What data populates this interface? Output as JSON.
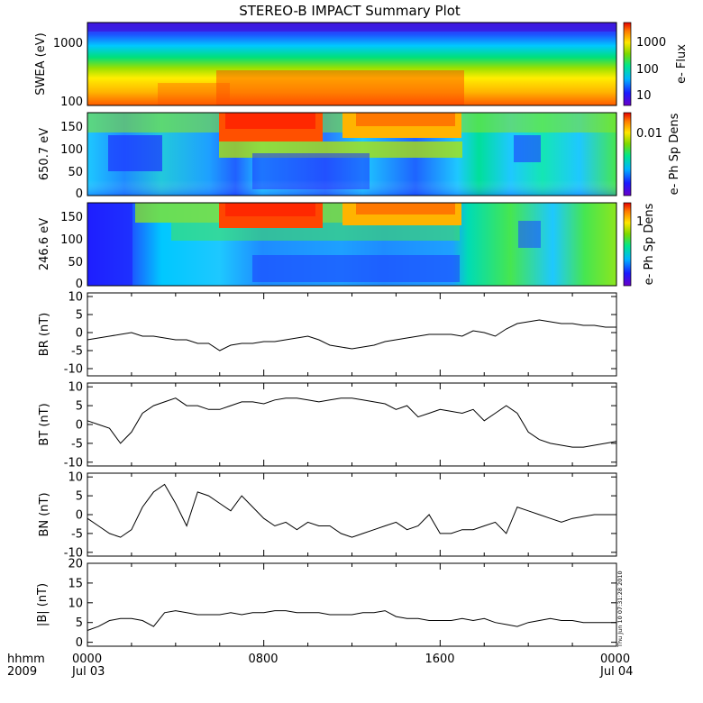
{
  "title": "STEREO-B IMPACT Summary Plot",
  "footer": {
    "left_top": "hhmm",
    "left_bottom": "2009"
  },
  "timestamp": "Thu Jun 10 07:31:28 2010",
  "colors": {
    "line": "#000000",
    "frame": "#000000",
    "background": "#ffffff"
  },
  "chart_data": [
    {
      "type": "heatmap",
      "ylabel": "SWEA (eV)",
      "y_scale": "log",
      "y_ticks": [
        "1000",
        "100"
      ],
      "colorbar": {
        "label": "e- Flux",
        "scale": "log",
        "ticks": [
          "1000",
          "100",
          "10"
        ],
        "range": [
          3,
          6000
        ]
      }
    },
    {
      "type": "heatmap",
      "ylabel": "650.7 eV",
      "ylim": [
        0,
        180
      ],
      "y_ticks": [
        "150",
        "100",
        "50",
        "0"
      ],
      "colorbar": {
        "label": "e- Ph Sp Dens",
        "scale": "log",
        "ticks": [
          "0.01"
        ]
      }
    },
    {
      "type": "heatmap",
      "ylabel": "246.6 eV",
      "ylim": [
        0,
        180
      ],
      "y_ticks": [
        "150",
        "100",
        "50",
        "0"
      ],
      "colorbar": {
        "label": "e- Ph Sp Dens",
        "scale": "log",
        "ticks": [
          "1"
        ]
      }
    },
    {
      "type": "line",
      "ylabel": "BR (nT)",
      "ylim": [
        -12,
        11
      ],
      "y_ticks": [
        "10",
        "5",
        "0",
        "-5",
        "-10"
      ],
      "x_hours": [
        0,
        0.5,
        1,
        1.5,
        2,
        2.5,
        3,
        3.5,
        4,
        4.5,
        5,
        5.5,
        6,
        6.5,
        7,
        7.5,
        8,
        8.5,
        9,
        9.5,
        10,
        10.5,
        11,
        11.5,
        12,
        12.5,
        13,
        13.5,
        14,
        14.5,
        15,
        15.5,
        16,
        16.5,
        17,
        17.5,
        18,
        18.5,
        19,
        19.5,
        20,
        20.5,
        21,
        21.5,
        22,
        22.5,
        23,
        23.5,
        24
      ],
      "series": [
        {
          "values": [
            -2,
            -1.5,
            -1,
            -0.5,
            0,
            -1,
            -1,
            -1.5,
            -2,
            -2,
            -3,
            -3,
            -5,
            -3.5,
            -3,
            -3,
            -2.5,
            -2.5,
            -2,
            -1.5,
            -1,
            -2,
            -3.5,
            -4,
            -4.5,
            -4,
            -3.5,
            -2.5,
            -2,
            -1.5,
            -1,
            -0.5,
            -0.5,
            -0.5,
            -1,
            0.5,
            0,
            -1,
            1,
            2.5,
            3,
            3.5,
            3,
            2.5,
            2.5,
            2,
            2,
            1.5,
            1.5
          ]
        }
      ]
    },
    {
      "type": "line",
      "ylabel": "BT (nT)",
      "ylim": [
        -11,
        11
      ],
      "y_ticks": [
        "10",
        "5",
        "0",
        "-5",
        "-10"
      ],
      "x_hours": [
        0,
        0.5,
        1,
        1.5,
        2,
        2.5,
        3,
        3.5,
        4,
        4.5,
        5,
        5.5,
        6,
        6.5,
        7,
        7.5,
        8,
        8.5,
        9,
        9.5,
        10,
        10.5,
        11,
        11.5,
        12,
        12.5,
        13,
        13.5,
        14,
        14.5,
        15,
        15.5,
        16,
        16.5,
        17,
        17.5,
        18,
        18.5,
        19,
        19.5,
        20,
        20.5,
        21,
        21.5,
        22,
        22.5,
        23,
        23.5,
        24
      ],
      "series": [
        {
          "values": [
            1,
            0,
            -1,
            -5,
            -2,
            3,
            5,
            6,
            7,
            5,
            5,
            4,
            4,
            5,
            6,
            6,
            5.5,
            6.5,
            7,
            7,
            6.5,
            6,
            6.5,
            7,
            7,
            6.5,
            6,
            5.5,
            4,
            5,
            2,
            3,
            4,
            3.5,
            3,
            4,
            1,
            3,
            5,
            3,
            -2,
            -4,
            -5,
            -5.5,
            -6,
            -6,
            -5.5,
            -5,
            -4.5
          ]
        }
      ]
    },
    {
      "type": "line",
      "ylabel": "BN (nT)",
      "ylim": [
        -11,
        11
      ],
      "y_ticks": [
        "10",
        "5",
        "0",
        "-5",
        "-10"
      ],
      "x_hours": [
        0,
        0.5,
        1,
        1.5,
        2,
        2.5,
        3,
        3.5,
        4,
        4.5,
        5,
        5.5,
        6,
        6.5,
        7,
        7.5,
        8,
        8.5,
        9,
        9.5,
        10,
        10.5,
        11,
        11.5,
        12,
        12.5,
        13,
        13.5,
        14,
        14.5,
        15,
        15.5,
        16,
        16.5,
        17,
        17.5,
        18,
        18.5,
        19,
        19.5,
        20,
        20.5,
        21,
        21.5,
        22,
        22.5,
        23,
        23.5,
        24
      ],
      "series": [
        {
          "values": [
            -1,
            -3,
            -5,
            -6,
            -4,
            2,
            6,
            8,
            3,
            -3,
            6,
            5,
            3,
            1,
            5,
            2,
            -1,
            -3,
            -2,
            -4,
            -2,
            -3,
            -3,
            -5,
            -6,
            -5,
            -4,
            -3,
            -2,
            -4,
            -3,
            0,
            -5,
            -5,
            -4,
            -4,
            -3,
            -2,
            -5,
            2,
            1,
            0,
            -1,
            -2,
            -1,
            -0.5,
            0,
            0,
            0
          ]
        }
      ]
    },
    {
      "type": "line",
      "ylabel": "|B| (nT)",
      "ylim": [
        -1,
        20
      ],
      "y_ticks": [
        "20",
        "15",
        "10",
        "5",
        "0"
      ],
      "x_hours": [
        0,
        0.5,
        1,
        1.5,
        2,
        2.5,
        3,
        3.5,
        4,
        4.5,
        5,
        5.5,
        6,
        6.5,
        7,
        7.5,
        8,
        8.5,
        9,
        9.5,
        10,
        10.5,
        11,
        11.5,
        12,
        12.5,
        13,
        13.5,
        14,
        14.5,
        15,
        15.5,
        16,
        16.5,
        17,
        17.5,
        18,
        18.5,
        19,
        19.5,
        20,
        20.5,
        21,
        21.5,
        22,
        22.5,
        23,
        23.5,
        24
      ],
      "series": [
        {
          "values": [
            3,
            4,
            5.5,
            6,
            6,
            5.5,
            4,
            7.5,
            8,
            7.5,
            7,
            7,
            7,
            7.5,
            7,
            7.5,
            7.5,
            8,
            8,
            7.5,
            7.5,
            7.5,
            7,
            7,
            7,
            7.5,
            7.5,
            8,
            6.5,
            6,
            6,
            5.5,
            5.5,
            5.5,
            6,
            5.5,
            6,
            5,
            4.5,
            4,
            5,
            5.5,
            6,
            5.5,
            5.5,
            5,
            5,
            5,
            5
          ]
        }
      ]
    }
  ],
  "x_axis": {
    "range_hours": [
      0,
      24
    ],
    "ticks": [
      {
        "hour": 0,
        "label": "0000",
        "date": "Jul 03"
      },
      {
        "hour": 8,
        "label": "0800",
        "date": ""
      },
      {
        "hour": 16,
        "label": "1600",
        "date": ""
      },
      {
        "hour": 24,
        "label": "0000",
        "date": "Jul 04"
      }
    ]
  }
}
